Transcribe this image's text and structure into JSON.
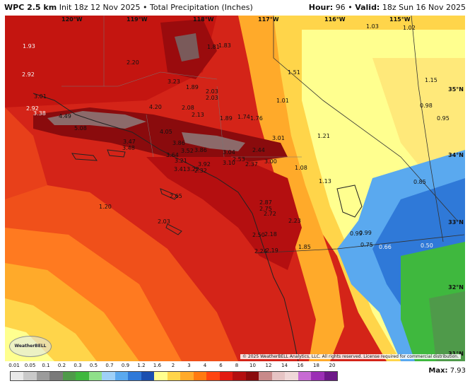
{
  "header": {
    "model": "WPC 2.5 km",
    "init": "Init 18z 12 Nov 2025",
    "sep": "•",
    "field": "Total Precipitation (Inches)",
    "hour_label": "Hour:",
    "hour_value": "96",
    "valid_label": "Valid:",
    "valid_value": "18z Sun 16 Nov 2025"
  },
  "grid_labels": {
    "lon_120": "120°W",
    "lon_119": "119°W",
    "lon_118": "118°W",
    "lon_117": "117°W",
    "lon_116": "116°W",
    "lon_115": "115°W",
    "lat_35": "35°N",
    "lat_34": "34°N",
    "lat_33": "33°N",
    "lat_32": "32°N",
    "lat_31": "31°N"
  },
  "point_values": [
    "1.93",
    "2.20",
    "1.81",
    "1.83",
    "1.03",
    "1.02",
    "2.92",
    "3.23",
    "1.89",
    "1.51",
    "1.15",
    "3.01",
    "2.03",
    "2.03",
    "1.01",
    "2.92",
    "3.38",
    "4.20",
    "2.08",
    "0.98",
    "4.49",
    "2.13",
    "1.89",
    "1.74",
    "1.76",
    "0.95",
    "5.08",
    "4.05",
    "1.21",
    "3.01",
    "3.47",
    "3.86",
    "3.48",
    "3.52",
    "3.86",
    "2.44",
    "3.04",
    "3.64",
    "2.53",
    "3.21",
    "3.92",
    "3.10",
    "2.37",
    "3.00",
    "3.41",
    "3.22",
    "2.32",
    "1.08",
    "1.13",
    "0.85",
    "2.65",
    "2.87",
    "2.75",
    "1.20",
    "2.72",
    "2.03",
    "2.23",
    "0.99",
    "0.99",
    "2.50",
    "2.18",
    "0.75",
    "0.66",
    "0.50",
    "2.24",
    "2.19",
    "1.85"
  ],
  "legend": {
    "ticks": [
      "0.01",
      "0.05",
      "0.1",
      "0.2",
      "0.3",
      "0.5",
      "0.7",
      "0.9",
      "1.2",
      "1.6",
      "2",
      "3",
      "4",
      "6",
      "8",
      "10",
      "12",
      "14",
      "16",
      "18",
      "20"
    ],
    "colors": [
      "#e9e9e9",
      "#c9c9c9",
      "#9b9b9b",
      "#7a7a7a",
      "#4f9a4a",
      "#3fb83e",
      "#8fe08a",
      "#9fd0f7",
      "#5aa9ef",
      "#2f79d8",
      "#1a4fb0",
      "#ffff8f",
      "#ffd54a",
      "#ffaa2a",
      "#ff7a10",
      "#ff4510",
      "#e21a12",
      "#b40f10",
      "#8a0b0d",
      "#c88a8a",
      "#e6c4c4",
      "#f0d8d8",
      "#c76bd3",
      "#9b2fb5",
      "#6d1888"
    ]
  },
  "max_label": "Max:",
  "max_value": "7.93",
  "credit": "© 2025 WeatherBELL Analytics, LLC. All rights reserved. License required for commercial distribution.",
  "logo_text": "WeatherBELL"
}
